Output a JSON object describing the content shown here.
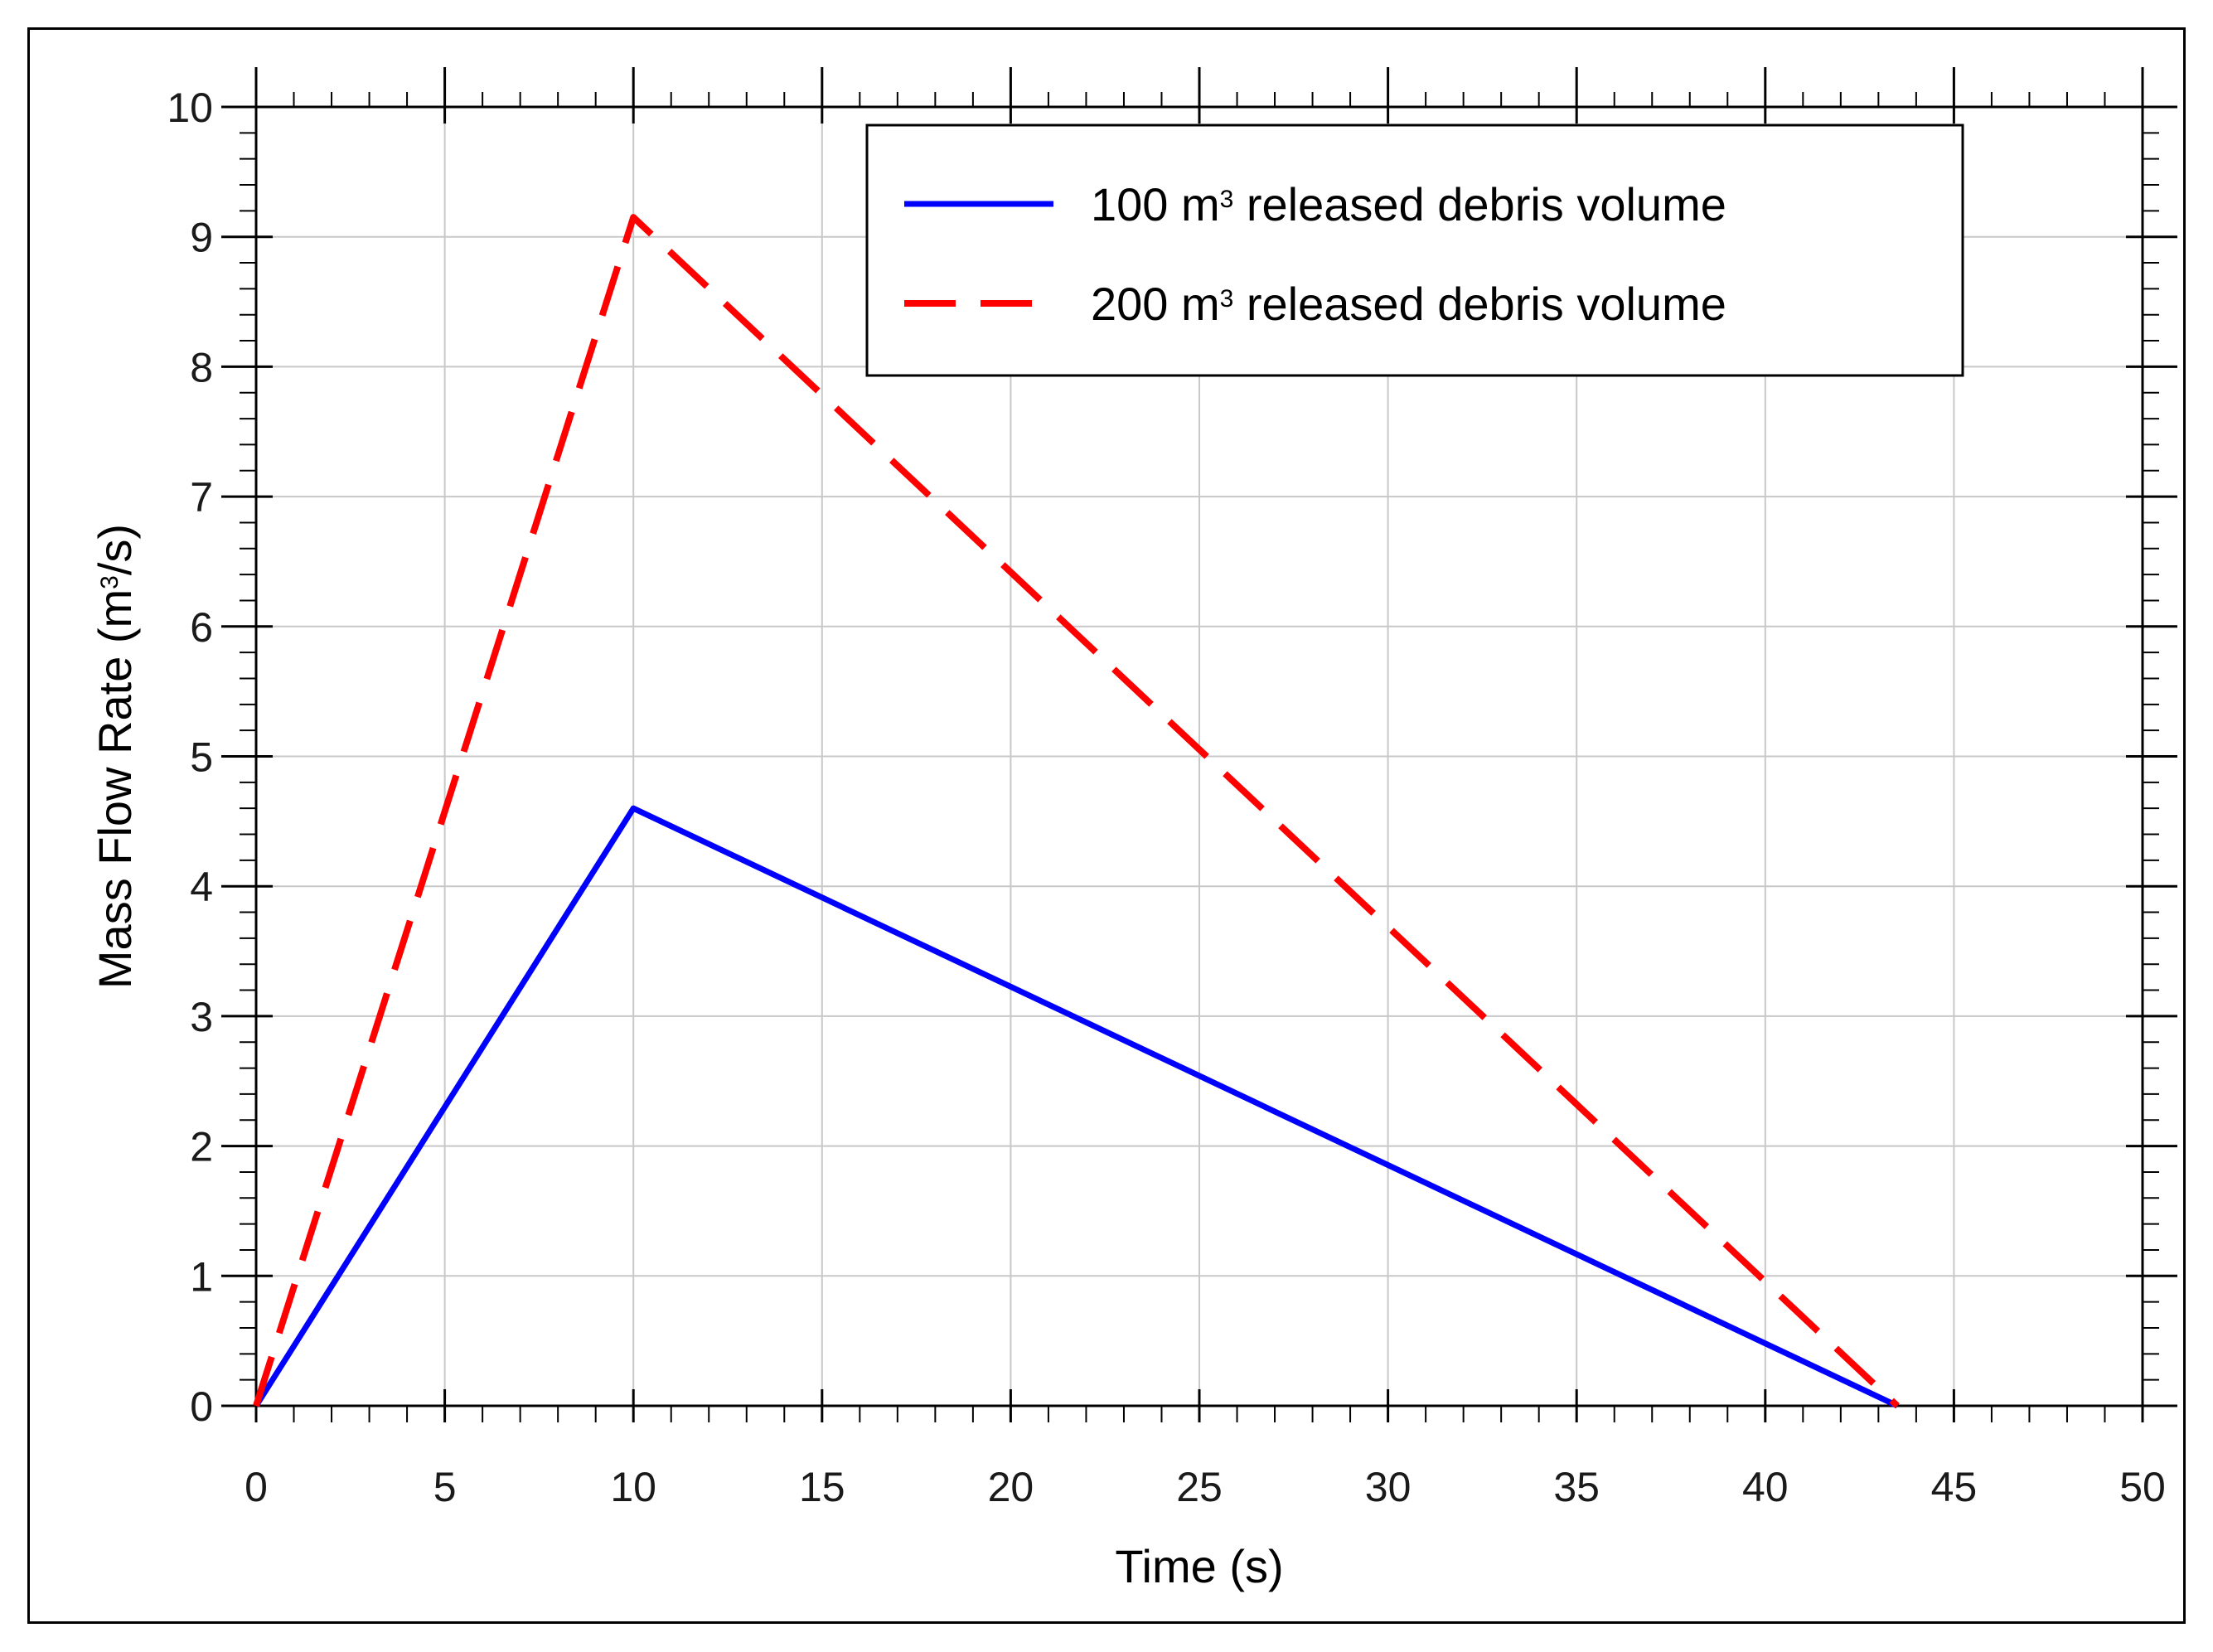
{
  "chart_data": {
    "type": "line",
    "xlabel": "Time (s)",
    "ylabel_parts": [
      "Mass Flow Rate (m",
      "3",
      "/s)"
    ],
    "xlim": [
      0,
      50
    ],
    "ylim": [
      0,
      10
    ],
    "x_ticks": [
      0,
      5,
      10,
      15,
      20,
      25,
      30,
      35,
      40,
      45,
      50
    ],
    "y_ticks": [
      0,
      1,
      2,
      3,
      4,
      5,
      6,
      7,
      8,
      9,
      10
    ],
    "grid": true,
    "legend_position": "top-right",
    "series": [
      {
        "name_parts": [
          "100 m",
          "3",
          " released debris volume"
        ],
        "color": "#0000ff",
        "style": "solid",
        "x": [
          0,
          10,
          43.5
        ],
        "y": [
          0,
          4.6,
          0
        ]
      },
      {
        "name_parts": [
          "200 m",
          "3",
          " released debris volume"
        ],
        "color": "#ff0000",
        "style": "dashed",
        "x": [
          0,
          10,
          43.5
        ],
        "y": [
          0,
          9.15,
          0
        ]
      }
    ]
  }
}
